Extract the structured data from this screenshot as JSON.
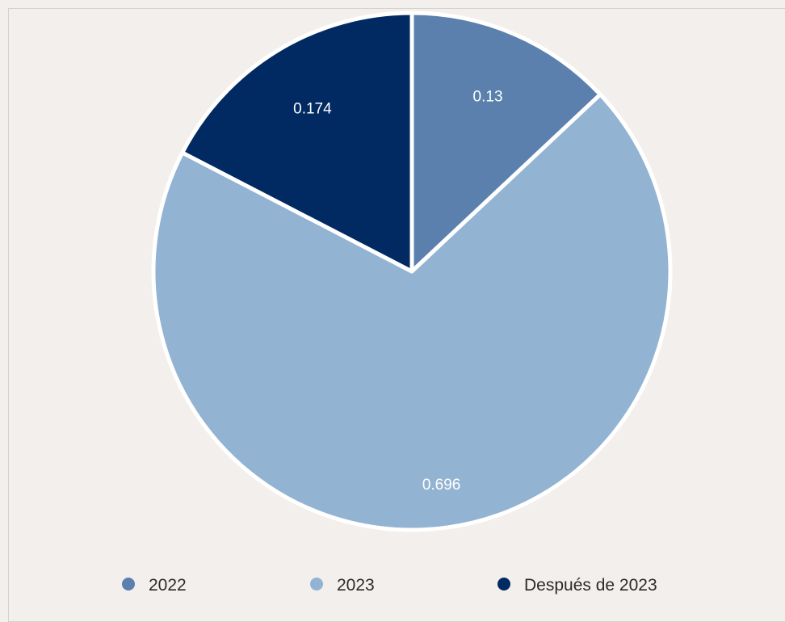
{
  "chart_data": {
    "type": "pie",
    "title": "",
    "categories": [
      "2022",
      "2023",
      "Después de 2023"
    ],
    "values": [
      0.13,
      0.696,
      0.174
    ],
    "data_labels": [
      "0.13",
      "0.696",
      "0.174"
    ],
    "colors": [
      "#5b80ae",
      "#93b3d2",
      "#002a61"
    ],
    "start_angle": "12 o'clock",
    "direction": "clockwise",
    "legend": "bottom",
    "border_color": "#ffffff"
  }
}
